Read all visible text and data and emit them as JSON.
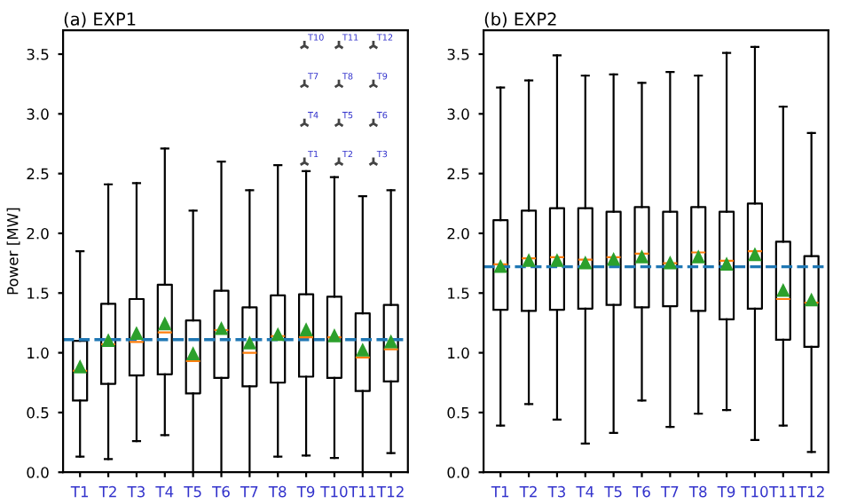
{
  "chart_data": [
    {
      "type": "box",
      "title": "(a) EXP1",
      "ylabel": "Power [MW]",
      "categories": [
        "T1",
        "T2",
        "T3",
        "T4",
        "T5",
        "T6",
        "T7",
        "T8",
        "T9",
        "T10",
        "T11",
        "T12"
      ],
      "ylim": [
        0,
        3.7
      ],
      "yticks": [
        {
          "value": 0,
          "label": "0.0"
        },
        0.5,
        {
          "value": 1,
          "label": "1.0"
        },
        1.5,
        {
          "value": 2,
          "label": "2.0"
        },
        2.5,
        {
          "value": 3,
          "label": "3.0"
        },
        3.5
      ],
      "grid": false,
      "ref_lines": [
        {
          "axis": "y",
          "value": 1.11,
          "color": "#1f77b4",
          "line_style": "dashed"
        }
      ],
      "annotations": [
        "T10",
        "T11",
        "T12",
        "T7",
        "T8",
        "T9",
        "T4",
        "T5",
        "T6",
        "T1",
        "T2",
        "T3"
      ],
      "boxes": [
        {
          "low": 0.13,
          "q1": 0.6,
          "median": 0.85,
          "q3": 1.1,
          "high": 1.85,
          "mean": 0.88
        },
        {
          "low": 0.11,
          "q1": 0.74,
          "median": 1.07,
          "q3": 1.41,
          "high": 2.41,
          "mean": 1.1
        },
        {
          "low": 0.26,
          "q1": 0.81,
          "median": 1.09,
          "q3": 1.45,
          "high": 2.42,
          "mean": 1.16
        },
        {
          "low": 0.31,
          "q1": 0.82,
          "median": 1.17,
          "q3": 1.57,
          "high": 2.71,
          "mean": 1.24
        },
        {
          "low": 0.0,
          "q1": 0.66,
          "median": 0.93,
          "q3": 1.27,
          "high": 2.19,
          "mean": 0.99
        },
        {
          "low": 0.0,
          "q1": 0.79,
          "median": 1.19,
          "q3": 1.52,
          "high": 2.6,
          "mean": 1.2
        },
        {
          "low": 0.0,
          "q1": 0.72,
          "median": 1.0,
          "q3": 1.38,
          "high": 2.36,
          "mean": 1.08
        },
        {
          "low": 0.13,
          "q1": 0.75,
          "median": 1.14,
          "q3": 1.48,
          "high": 2.57,
          "mean": 1.15
        },
        {
          "low": 0.14,
          "q1": 0.8,
          "median": 1.13,
          "q3": 1.49,
          "high": 2.52,
          "mean": 1.19
        },
        {
          "low": 0.12,
          "q1": 0.79,
          "median": 1.13,
          "q3": 1.47,
          "high": 2.47,
          "mean": 1.14
        },
        {
          "low": 0.0,
          "q1": 0.68,
          "median": 0.96,
          "q3": 1.33,
          "high": 2.31,
          "mean": 1.02
        },
        {
          "low": 0.16,
          "q1": 0.76,
          "median": 1.03,
          "q3": 1.4,
          "high": 2.36,
          "mean": 1.09
        }
      ]
    },
    {
      "type": "box",
      "title": "(b) EXP2",
      "categories": [
        "T1",
        "T2",
        "T3",
        "T4",
        "T5",
        "T6",
        "T7",
        "T8",
        "T9",
        "T10",
        "T11",
        "T12"
      ],
      "ylim": [
        0,
        3.7
      ],
      "yticks": [
        {
          "value": 0,
          "label": "0.0"
        },
        0.5,
        {
          "value": 1,
          "label": "1.0"
        },
        1.5,
        {
          "value": 2,
          "label": "2.0"
        },
        2.5,
        {
          "value": 3,
          "label": "3.0"
        },
        3.5
      ],
      "grid": false,
      "ref_lines": [
        {
          "axis": "y",
          "value": 1.72,
          "color": "#1f77b4",
          "line_style": "dashed"
        }
      ],
      "boxes": [
        {
          "low": 0.39,
          "q1": 1.36,
          "median": 1.74,
          "q3": 2.11,
          "high": 3.22,
          "mean": 1.72
        },
        {
          "low": 0.57,
          "q1": 1.35,
          "median": 1.79,
          "q3": 2.19,
          "high": 3.28,
          "mean": 1.77
        },
        {
          "low": 0.44,
          "q1": 1.36,
          "median": 1.8,
          "q3": 2.21,
          "high": 3.49,
          "mean": 1.77
        },
        {
          "low": 0.24,
          "q1": 1.37,
          "median": 1.78,
          "q3": 2.21,
          "high": 3.32,
          "mean": 1.75
        },
        {
          "low": 0.33,
          "q1": 1.4,
          "median": 1.8,
          "q3": 2.18,
          "high": 3.33,
          "mean": 1.78
        },
        {
          "low": 0.6,
          "q1": 1.38,
          "median": 1.83,
          "q3": 2.22,
          "high": 3.26,
          "mean": 1.8
        },
        {
          "low": 0.38,
          "q1": 1.39,
          "median": 1.75,
          "q3": 2.18,
          "high": 3.35,
          "mean": 1.75
        },
        {
          "low": 0.49,
          "q1": 1.35,
          "median": 1.84,
          "q3": 2.22,
          "high": 3.32,
          "mean": 1.8
        },
        {
          "low": 0.52,
          "q1": 1.28,
          "median": 1.77,
          "q3": 2.18,
          "high": 3.51,
          "mean": 1.74
        },
        {
          "low": 0.27,
          "q1": 1.37,
          "median": 1.85,
          "q3": 2.25,
          "high": 3.56,
          "mean": 1.82
        },
        {
          "low": 0.39,
          "q1": 1.11,
          "median": 1.45,
          "q3": 1.93,
          "high": 3.06,
          "mean": 1.52
        },
        {
          "low": 0.17,
          "q1": 1.05,
          "median": 1.42,
          "q3": 1.81,
          "high": 2.84,
          "mean": 1.44
        }
      ]
    }
  ]
}
